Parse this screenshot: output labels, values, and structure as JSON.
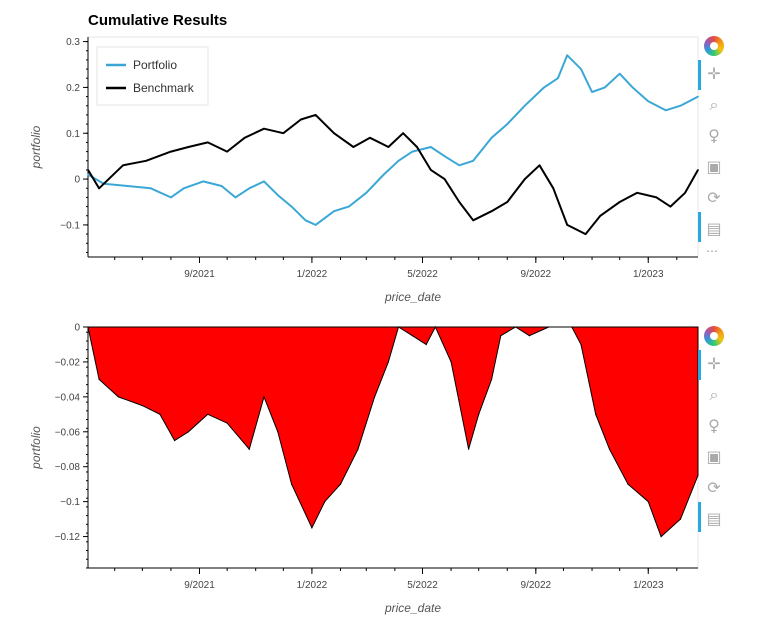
{
  "title": "Cumulative Results",
  "chart_data": [
    {
      "type": "line",
      "xlabel": "price_date",
      "ylabel": "portfolio",
      "x_ticks": [
        "9/2021",
        "1/2022",
        "5/2022",
        "9/2022",
        "1/2023"
      ],
      "xlim": [
        "2021-05-03",
        "2023-02-24"
      ],
      "ylim": [
        -0.17,
        0.31
      ],
      "y_ticks": [
        "0.3",
        "0.2",
        "0.1",
        "0",
        "−0.1"
      ],
      "legend_position": "top-left",
      "series": [
        {
          "name": "Portfolio",
          "color": "#3ba7d6",
          "points": [
            [
              "2021-05-03",
              0.01
            ],
            [
              "2021-05-20",
              -0.01
            ],
            [
              "2021-06-15",
              -0.015
            ],
            [
              "2021-07-10",
              -0.02
            ],
            [
              "2021-08-01",
              -0.04
            ],
            [
              "2021-08-15",
              -0.02
            ],
            [
              "2021-09-05",
              -0.005
            ],
            [
              "2021-09-25",
              -0.015
            ],
            [
              "2021-10-10",
              -0.04
            ],
            [
              "2021-10-25",
              -0.02
            ],
            [
              "2021-11-10",
              -0.005
            ],
            [
              "2021-11-25",
              -0.035
            ],
            [
              "2021-12-10",
              -0.06
            ],
            [
              "2021-12-25",
              -0.09
            ],
            [
              "2022-01-05",
              -0.1
            ],
            [
              "2022-01-25",
              -0.07
            ],
            [
              "2022-02-10",
              -0.06
            ],
            [
              "2022-03-01",
              -0.03
            ],
            [
              "2022-03-20",
              0.01
            ],
            [
              "2022-04-05",
              0.04
            ],
            [
              "2022-04-20",
              0.06
            ],
            [
              "2022-05-10",
              0.07
            ],
            [
              "2022-05-25",
              0.05
            ],
            [
              "2022-06-10",
              0.03
            ],
            [
              "2022-06-25",
              0.04
            ],
            [
              "2022-07-15",
              0.09
            ],
            [
              "2022-08-01",
              0.12
            ],
            [
              "2022-08-20",
              0.16
            ],
            [
              "2022-09-10",
              0.2
            ],
            [
              "2022-09-25",
              0.22
            ],
            [
              "2022-10-05",
              0.27
            ],
            [
              "2022-10-20",
              0.24
            ],
            [
              "2022-11-01",
              0.19
            ],
            [
              "2022-11-15",
              0.2
            ],
            [
              "2022-12-01",
              0.23
            ],
            [
              "2022-12-15",
              0.2
            ],
            [
              "2023-01-01",
              0.17
            ],
            [
              "2023-01-20",
              0.15
            ],
            [
              "2023-02-05",
              0.16
            ],
            [
              "2023-02-24",
              0.18
            ]
          ]
        },
        {
          "name": "Benchmark",
          "color": "#000000",
          "points": [
            [
              "2021-05-03",
              0.02
            ],
            [
              "2021-05-15",
              -0.02
            ],
            [
              "2021-06-10",
              0.03
            ],
            [
              "2021-07-05",
              0.04
            ],
            [
              "2021-08-01",
              0.06
            ],
            [
              "2021-08-20",
              0.07
            ],
            [
              "2021-09-10",
              0.08
            ],
            [
              "2021-10-01",
              0.06
            ],
            [
              "2021-10-20",
              0.09
            ],
            [
              "2021-11-10",
              0.11
            ],
            [
              "2021-12-01",
              0.1
            ],
            [
              "2021-12-20",
              0.13
            ],
            [
              "2022-01-05",
              0.14
            ],
            [
              "2022-01-25",
              0.1
            ],
            [
              "2022-02-15",
              0.07
            ],
            [
              "2022-03-05",
              0.09
            ],
            [
              "2022-03-25",
              0.07
            ],
            [
              "2022-04-10",
              0.1
            ],
            [
              "2022-04-25",
              0.07
            ],
            [
              "2022-05-10",
              0.02
            ],
            [
              "2022-05-25",
              0.0
            ],
            [
              "2022-06-10",
              -0.05
            ],
            [
              "2022-06-25",
              -0.09
            ],
            [
              "2022-07-15",
              -0.07
            ],
            [
              "2022-08-01",
              -0.05
            ],
            [
              "2022-08-20",
              0.0
            ],
            [
              "2022-09-05",
              0.03
            ],
            [
              "2022-09-20",
              -0.02
            ],
            [
              "2022-10-05",
              -0.1
            ],
            [
              "2022-10-25",
              -0.12
            ],
            [
              "2022-11-10",
              -0.08
            ],
            [
              "2022-12-01",
              -0.05
            ],
            [
              "2022-12-20",
              -0.03
            ],
            [
              "2023-01-10",
              -0.04
            ],
            [
              "2023-01-25",
              -0.06
            ],
            [
              "2023-02-10",
              -0.03
            ],
            [
              "2023-02-24",
              0.02
            ]
          ]
        }
      ]
    },
    {
      "type": "area",
      "xlabel": "price_date",
      "ylabel": "portfolio",
      "x_ticks": [
        "9/2021",
        "1/2022",
        "5/2022",
        "9/2022",
        "1/2023"
      ],
      "xlim": [
        "2021-05-03",
        "2023-02-24"
      ],
      "ylim": [
        -0.138,
        0.0
      ],
      "y_ticks": [
        "0",
        "−0.02",
        "−0.04",
        "−0.06",
        "−0.08",
        "−0.1",
        "−0.12"
      ],
      "fill_color": "#ff0000",
      "points": [
        [
          "2021-05-03",
          0.0
        ],
        [
          "2021-05-15",
          -0.03
        ],
        [
          "2021-06-05",
          -0.04
        ],
        [
          "2021-07-01",
          -0.045
        ],
        [
          "2021-07-20",
          -0.05
        ],
        [
          "2021-08-05",
          -0.065
        ],
        [
          "2021-08-20",
          -0.06
        ],
        [
          "2021-09-10",
          -0.05
        ],
        [
          "2021-10-01",
          -0.055
        ],
        [
          "2021-10-25",
          -0.07
        ],
        [
          "2021-11-10",
          -0.04
        ],
        [
          "2021-11-25",
          -0.06
        ],
        [
          "2021-12-10",
          -0.09
        ],
        [
          "2022-01-01",
          -0.115
        ],
        [
          "2022-01-15",
          -0.1
        ],
        [
          "2022-02-01",
          -0.09
        ],
        [
          "2022-02-20",
          -0.07
        ],
        [
          "2022-03-10",
          -0.04
        ],
        [
          "2022-03-25",
          -0.02
        ],
        [
          "2022-04-05",
          0.0
        ],
        [
          "2022-04-20",
          -0.005
        ],
        [
          "2022-05-05",
          -0.01
        ],
        [
          "2022-05-15",
          0.0
        ],
        [
          "2022-06-01",
          -0.02
        ],
        [
          "2022-06-20",
          -0.07
        ],
        [
          "2022-07-01",
          -0.05
        ],
        [
          "2022-07-15",
          -0.03
        ],
        [
          "2022-07-25",
          -0.005
        ],
        [
          "2022-08-10",
          0.0
        ],
        [
          "2022-08-25",
          -0.005
        ],
        [
          "2022-09-15",
          0.0
        ],
        [
          "2022-10-10",
          0.0
        ],
        [
          "2022-10-20",
          -0.01
        ],
        [
          "2022-11-05",
          -0.05
        ],
        [
          "2022-11-20",
          -0.07
        ],
        [
          "2022-12-10",
          -0.09
        ],
        [
          "2023-01-01",
          -0.1
        ],
        [
          "2023-01-15",
          -0.12
        ],
        [
          "2023-02-05",
          -0.11
        ],
        [
          "2023-02-24",
          -0.085
        ]
      ]
    }
  ],
  "toolbar_icons": [
    "bokeh-logo-icon",
    "pan-icon",
    "box-zoom-icon",
    "wheel-zoom-icon",
    "save-icon",
    "reset-icon",
    "hover-icon",
    "more-icon"
  ]
}
